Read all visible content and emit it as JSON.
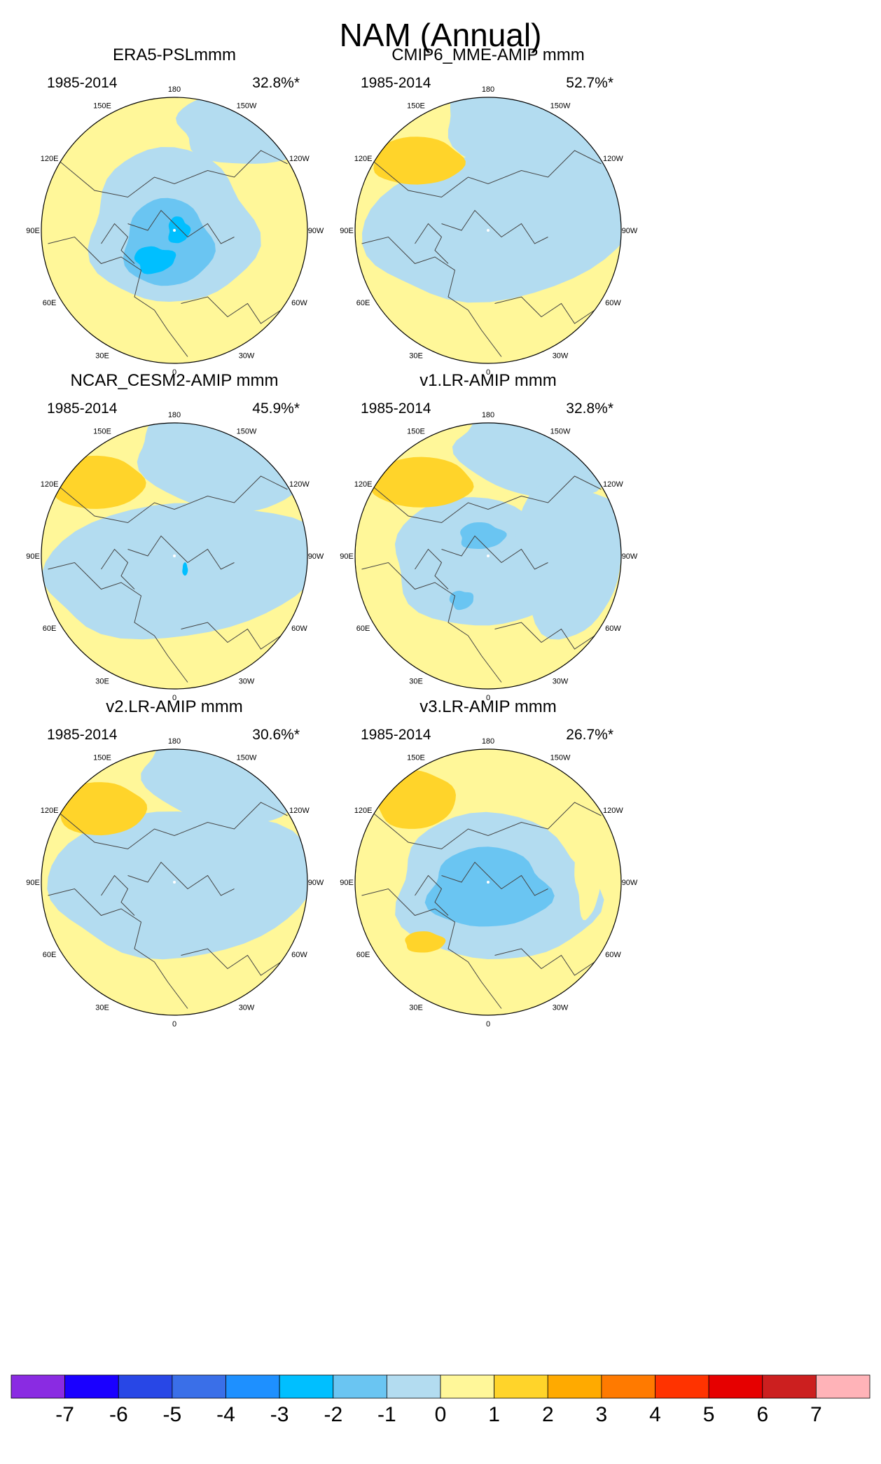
{
  "figure": {
    "title": "NAM (Annual)",
    "period": "1985-2014"
  },
  "chart_data": {
    "type": "heatmap",
    "projection": "polar stereographic, North Pole",
    "longitude_labels": [
      "180",
      "150E",
      "120E",
      "90E",
      "60E",
      "30E",
      "0",
      "30W",
      "60W",
      "90W",
      "120W",
      "150W"
    ],
    "colorbar": {
      "labels": [
        "-7",
        "-6",
        "-5",
        "-4",
        "-3",
        "-2",
        "-1",
        "0",
        "1",
        "2",
        "3",
        "4",
        "5",
        "6",
        "7"
      ],
      "colors": [
        "#8a2be2",
        "#1a00ff",
        "#2847e6",
        "#3a6fe8",
        "#1e90ff",
        "#00bfff",
        "#6ac5f2",
        "#b3dcf0",
        "#fff799",
        "#ffd42a",
        "#ffaa00",
        "#ff7a00",
        "#ff3300",
        "#e60000",
        "#cc1f1f",
        "#ffb3b8"
      ]
    },
    "panels": [
      {
        "name": "ERA5-PSLmmm",
        "period": "1985-2014",
        "variance": "32.8%*"
      },
      {
        "name": "CMIP6_MME-AMIP  mmm",
        "period": "1985-2014",
        "variance": "52.7%*"
      },
      {
        "name": "NCAR_CESM2-AMIP  mmm",
        "period": "1985-2014",
        "variance": "45.9%*"
      },
      {
        "name": "v1.LR-AMIP  mmm",
        "period": "1985-2014",
        "variance": "32.8%*"
      },
      {
        "name": "v2.LR-AMIP  mmm",
        "period": "1985-2014",
        "variance": "30.6%*"
      },
      {
        "name": "v3.LR-AMIP  mmm",
        "period": "1985-2014",
        "variance": "26.7%*"
      }
    ]
  }
}
